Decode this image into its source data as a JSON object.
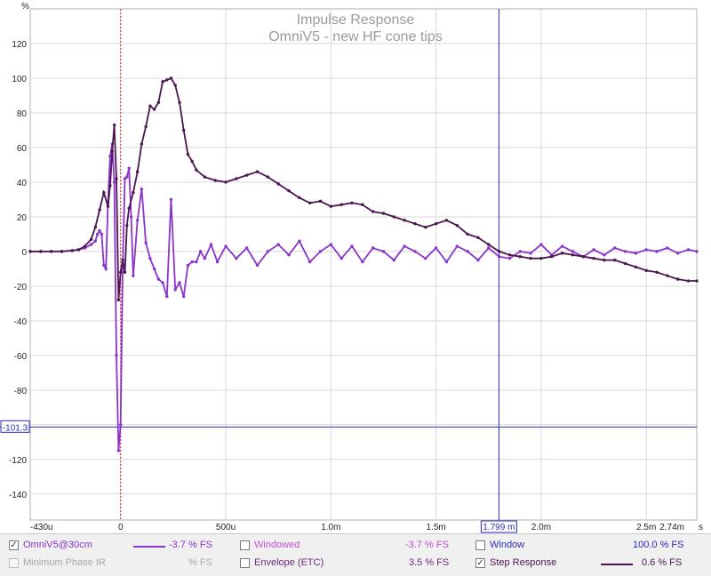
{
  "colors": {
    "background": "#ffffff",
    "grid": "#d9d9d9",
    "axis_text": "#222222",
    "title": "#9a9a9a",
    "impulse": "#8a35c9",
    "step": "#4a1550",
    "cursor": "#2b2bb8",
    "zero_marker": "#e02020",
    "legend_disabled": "#a8a8a8",
    "legend_blue": "#2b2bb8"
  },
  "chart_data": {
    "type": "line",
    "title": "Impulse Response",
    "subtitle": "OmniV5 - new HF cone tips",
    "ylabel": "%",
    "x_unit_label": "s",
    "xlim": [
      -0.43,
      2.74
    ],
    "ylim": [
      -155,
      140
    ],
    "x_ticks": [
      {
        "value": -0.43,
        "label": "-430u"
      },
      {
        "value": 0,
        "label": "0"
      },
      {
        "value": 0.5,
        "label": "500u"
      },
      {
        "value": 1.0,
        "label": "1.0m"
      },
      {
        "value": 1.5,
        "label": "1.5m"
      },
      {
        "value": 2.0,
        "label": "2.0m"
      },
      {
        "value": 2.5,
        "label": "2.5m"
      },
      {
        "value": 2.74,
        "label": "2.74m"
      }
    ],
    "y_ticks": [
      120,
      100,
      80,
      60,
      40,
      20,
      0,
      -20,
      -40,
      -60,
      -80,
      -100,
      -120,
      -140
    ],
    "cursor_x": {
      "value": 1.799,
      "label": "1.799 m"
    },
    "cursor_y": {
      "value": -101.3,
      "label": "-101.3"
    },
    "zero_marker_x": 0,
    "grid": true,
    "series": [
      {
        "name": "OmniV5@30cm",
        "x": [
          -0.43,
          -0.38,
          -0.33,
          -0.28,
          -0.23,
          -0.2,
          -0.17,
          -0.14,
          -0.12,
          -0.11,
          -0.1,
          -0.09,
          -0.08,
          -0.07,
          -0.06,
          -0.05,
          -0.04,
          -0.03,
          -0.02,
          -0.01,
          0,
          0.01,
          0.02,
          0.03,
          0.04,
          0.05,
          0.06,
          0.08,
          0.1,
          0.12,
          0.14,
          0.16,
          0.18,
          0.2,
          0.22,
          0.24,
          0.26,
          0.28,
          0.3,
          0.32,
          0.34,
          0.36,
          0.38,
          0.4,
          0.43,
          0.46,
          0.5,
          0.55,
          0.6,
          0.65,
          0.7,
          0.75,
          0.8,
          0.85,
          0.9,
          0.95,
          1.0,
          1.05,
          1.1,
          1.15,
          1.2,
          1.25,
          1.3,
          1.35,
          1.4,
          1.45,
          1.5,
          1.55,
          1.6,
          1.65,
          1.7,
          1.75,
          1.8,
          1.85,
          1.9,
          1.95,
          2.0,
          2.05,
          2.1,
          2.15,
          2.2,
          2.25,
          2.3,
          2.35,
          2.4,
          2.45,
          2.5,
          2.55,
          2.6,
          2.65,
          2.7,
          2.74
        ],
        "y": [
          0,
          0,
          0,
          0,
          0.5,
          1,
          2,
          4,
          6,
          10,
          12,
          10,
          -8,
          -10,
          28,
          55,
          62,
          40,
          -60,
          -115,
          -100,
          -8,
          42,
          43,
          48,
          20,
          -14,
          18,
          36,
          5,
          -4,
          -10,
          -16,
          -18,
          -26,
          30,
          -22,
          -18,
          -26,
          -8,
          -6,
          -6,
          0,
          -4,
          4,
          -6,
          3,
          -4,
          2,
          -8,
          0,
          4,
          -2,
          6,
          -6,
          0,
          4,
          -4,
          3,
          -6,
          2,
          0,
          -5,
          3,
          0,
          -4,
          2,
          -6,
          3,
          0,
          -5,
          2,
          -3,
          -4,
          0,
          -1,
          4,
          -2,
          3,
          0,
          -3,
          1,
          -2,
          2,
          0,
          -1,
          1,
          0,
          2,
          -1,
          1,
          0
        ],
        "legend_value": "-3.7 % FS"
      },
      {
        "name": "Step Response",
        "x": [
          -0.43,
          -0.38,
          -0.33,
          -0.28,
          -0.23,
          -0.2,
          -0.17,
          -0.14,
          -0.12,
          -0.1,
          -0.08,
          -0.06,
          -0.05,
          -0.04,
          -0.03,
          -0.02,
          -0.01,
          0,
          0.01,
          0.02,
          0.03,
          0.04,
          0.06,
          0.08,
          0.1,
          0.12,
          0.14,
          0.16,
          0.18,
          0.2,
          0.22,
          0.24,
          0.26,
          0.28,
          0.3,
          0.32,
          0.34,
          0.36,
          0.4,
          0.45,
          0.5,
          0.55,
          0.6,
          0.65,
          0.7,
          0.75,
          0.8,
          0.85,
          0.9,
          0.95,
          1.0,
          1.05,
          1.1,
          1.15,
          1.2,
          1.25,
          1.3,
          1.35,
          1.4,
          1.45,
          1.5,
          1.55,
          1.6,
          1.65,
          1.7,
          1.75,
          1.8,
          1.85,
          1.9,
          1.95,
          2.0,
          2.05,
          2.1,
          2.15,
          2.2,
          2.25,
          2.3,
          2.35,
          2.4,
          2.45,
          2.5,
          2.55,
          2.6,
          2.65,
          2.7,
          2.74
        ],
        "y": [
          0,
          0,
          0,
          0,
          0.5,
          1,
          3,
          7,
          14,
          24,
          34,
          26,
          38,
          58,
          73,
          42,
          -28,
          -12,
          -5,
          -12,
          15,
          25,
          34,
          46,
          62,
          72,
          84,
          82,
          86,
          98,
          99,
          100,
          96,
          86,
          70,
          56,
          52,
          47,
          43,
          41,
          40,
          42,
          44,
          46,
          43,
          39,
          35,
          31,
          28,
          29,
          26,
          27,
          28,
          27,
          23,
          22,
          20,
          18,
          16,
          14,
          16,
          18,
          15,
          10,
          8,
          4,
          0,
          -2,
          -3,
          -4,
          -4,
          -3,
          -1,
          -2,
          -3,
          -4,
          -5,
          -5,
          -7,
          -9,
          -11,
          -12,
          -14,
          -16,
          -17,
          -17
        ],
        "legend_value": "0.6 % FS"
      }
    ]
  },
  "legend": {
    "row1": [
      {
        "label": "OmniV5@30cm",
        "checked": true,
        "value": "-3.7 % FS"
      },
      {
        "label": "Windowed",
        "checked": false,
        "value": "-3.7 % FS"
      },
      {
        "label": "Window",
        "checked": false,
        "value": "100.0 % FS"
      }
    ],
    "row2": [
      {
        "label": "Minimum Phase IR",
        "checked": false,
        "value": "% FS",
        "disabled": true
      },
      {
        "label": "Envelope (ETC)",
        "checked": false,
        "value": "3.5 % FS"
      },
      {
        "label": "Step Response",
        "checked": true,
        "value": "0.6 % FS"
      }
    ],
    "check_mark": "✓"
  }
}
